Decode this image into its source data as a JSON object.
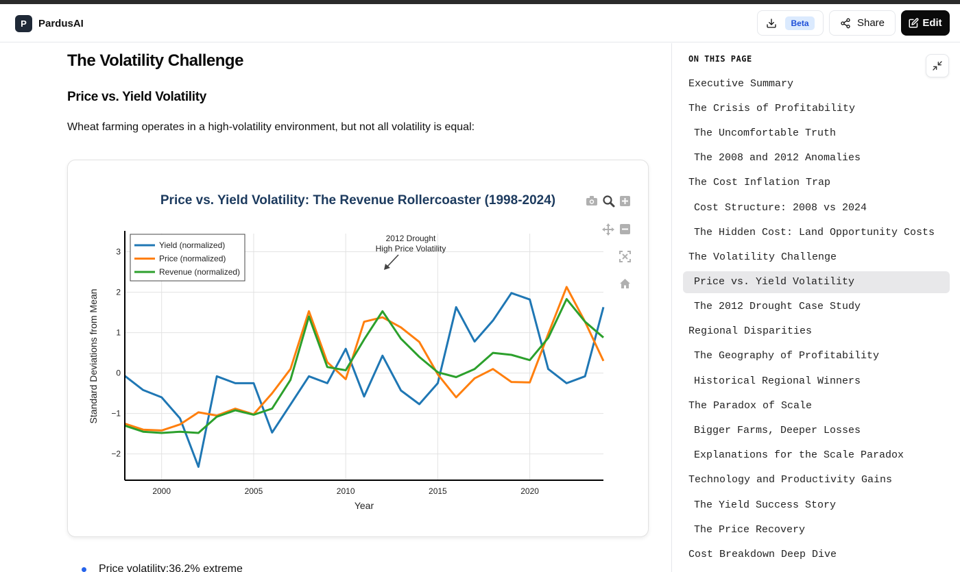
{
  "app": {
    "name": "PardusAI",
    "logo_letter": "P"
  },
  "header": {
    "beta_badge": "Beta",
    "share_label": "Share",
    "edit_label": "Edit"
  },
  "content": {
    "h1": "The Volatility Challenge",
    "h2": "Price vs. Yield Volatility",
    "paragraph": "Wheat farming operates in a high-volatility environment, but not all volatility is equal:",
    "bullet": "Price volatility:36.2% extreme"
  },
  "chart_data": {
    "type": "line",
    "title": "Price vs. Yield Volatility: The Revenue Rollercoaster (1998-2024)",
    "xlabel": "Year",
    "ylabel": "Standard Deviations from Mean",
    "xlim": [
      1998,
      2024
    ],
    "ylim": [
      -2.65,
      3.45
    ],
    "xticks": [
      2000,
      2005,
      2010,
      2015,
      2020
    ],
    "yticks": [
      -2,
      -1,
      0,
      1,
      2,
      3
    ],
    "grid": true,
    "legend_position": "top-left",
    "annotation": {
      "text": [
        "2012 Drought",
        "High Price Volatility"
      ],
      "x": 2012,
      "y": 2.5
    },
    "x": [
      1998,
      1999,
      2000,
      2001,
      2002,
      2003,
      2004,
      2005,
      2006,
      2007,
      2008,
      2009,
      2010,
      2011,
      2012,
      2013,
      2014,
      2015,
      2016,
      2017,
      2018,
      2019,
      2020,
      2021,
      2022,
      2023,
      2024
    ],
    "series": [
      {
        "name": "Yield (normalized)",
        "color": "#1f77b4",
        "values": [
          -0.07,
          -0.42,
          -0.6,
          -1.12,
          -2.32,
          -0.08,
          -0.25,
          -0.25,
          -1.47,
          -0.78,
          -0.08,
          -0.25,
          0.6,
          -0.58,
          0.43,
          -0.43,
          -0.77,
          -0.25,
          1.63,
          0.78,
          1.3,
          1.98,
          1.82,
          0.1,
          -0.25,
          -0.08,
          1.63
        ]
      },
      {
        "name": "Price (normalized)",
        "color": "#ff7f0e",
        "values": [
          -1.25,
          -1.4,
          -1.42,
          -1.27,
          -0.97,
          -1.05,
          -0.88,
          -1.02,
          -0.5,
          0.1,
          1.53,
          0.27,
          -0.15,
          1.27,
          1.38,
          1.13,
          0.77,
          -0.03,
          -0.6,
          -0.13,
          0.1,
          -0.22,
          -0.23,
          0.97,
          2.13,
          1.27,
          0.3
        ]
      },
      {
        "name": "Revenue (normalized)",
        "color": "#2ca02c",
        "values": [
          -1.3,
          -1.45,
          -1.48,
          -1.45,
          -1.48,
          -1.08,
          -0.92,
          -1.03,
          -0.88,
          -0.17,
          1.4,
          0.15,
          0.07,
          0.83,
          1.53,
          0.85,
          0.4,
          0.02,
          -0.1,
          0.1,
          0.5,
          0.45,
          0.32,
          0.87,
          1.83,
          1.27,
          0.88
        ]
      }
    ]
  },
  "sidebar": {
    "title": "ON THIS PAGE",
    "items": [
      {
        "label": "Executive Summary",
        "level": 1
      },
      {
        "label": "The Crisis of Profitability",
        "level": 1
      },
      {
        "label": "The Uncomfortable Truth",
        "level": 2
      },
      {
        "label": "The 2008 and 2012 Anomalies",
        "level": 2
      },
      {
        "label": "The Cost Inflation Trap",
        "level": 1
      },
      {
        "label": "Cost Structure: 2008 vs 2024",
        "level": 2
      },
      {
        "label": "The Hidden Cost: Land Opportunity Costs",
        "level": 2
      },
      {
        "label": "The Volatility Challenge",
        "level": 1
      },
      {
        "label": "Price vs. Yield Volatility",
        "level": 2,
        "active": true
      },
      {
        "label": "The 2012 Drought Case Study",
        "level": 2
      },
      {
        "label": "Regional Disparities",
        "level": 1
      },
      {
        "label": "The Geography of Profitability",
        "level": 2
      },
      {
        "label": "Historical Regional Winners",
        "level": 2
      },
      {
        "label": "The Paradox of Scale",
        "level": 1
      },
      {
        "label": "Bigger Farms, Deeper Losses",
        "level": 2
      },
      {
        "label": "Explanations for the Scale Paradox",
        "level": 2
      },
      {
        "label": "Technology and Productivity Gains",
        "level": 1
      },
      {
        "label": "The Yield Success Story",
        "level": 2
      },
      {
        "label": "The Price Recovery",
        "level": 2
      },
      {
        "label": "Cost Breakdown Deep Dive",
        "level": 1
      }
    ]
  }
}
